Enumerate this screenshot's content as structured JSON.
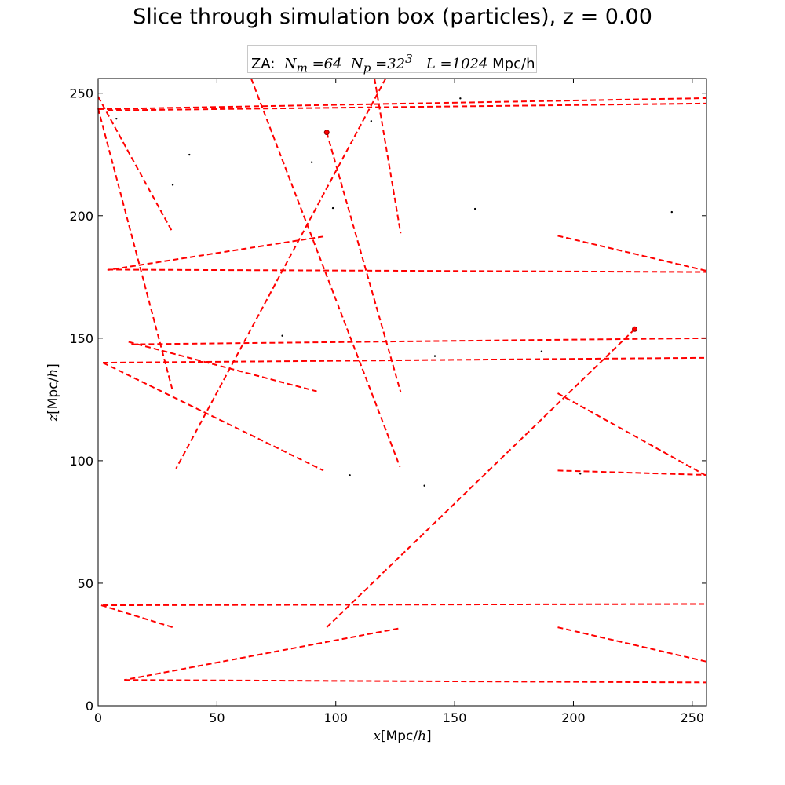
{
  "chart_data": {
    "type": "scatter",
    "title": "Slice through simulation box (particles), z = 0.00",
    "legend": {
      "label_prefix": "ZA:",
      "nm_label": "N",
      "nm_sub": "m",
      "nm_value": "=64",
      "np_label": "N",
      "np_sub": "p",
      "np_value": "=32",
      "np_sup": "3",
      "l_label": "L",
      "l_value": "=1024",
      "l_unit": "Mpc/h",
      "placement": "top-center"
    },
    "xlabel_math": "x",
    "xlabel_unit": "[Mpc/",
    "xlabel_math2": "h",
    "xlabel_close": "]",
    "ylabel_math": "z",
    "ylabel_unit": "[Mpc/",
    "ylabel_math2": "h",
    "ylabel_close": "]",
    "xlim": [
      0,
      256
    ],
    "ylim": [
      0,
      256
    ],
    "xticks": [
      0,
      50,
      100,
      150,
      200,
      250
    ],
    "yticks": [
      0,
      50,
      100,
      150,
      200,
      250
    ],
    "points": [
      [
        7.7,
        239.6
      ],
      [
        38.4,
        224.9
      ],
      [
        31.4,
        212.6
      ],
      [
        89.9,
        221.8
      ],
      [
        98.8,
        203.1
      ],
      [
        114.9,
        238.6
      ],
      [
        152.4,
        247.9
      ],
      [
        158.6,
        202.8
      ],
      [
        241.4,
        201.5
      ],
      [
        77.5,
        151.0
      ],
      [
        141.7,
        142.7
      ],
      [
        186.6,
        144.6
      ],
      [
        105.9,
        94.1
      ],
      [
        137.3,
        89.8
      ],
      [
        202.9,
        94.7
      ]
    ],
    "highlight_points": [
      [
        96.2,
        234.0
      ],
      [
        225.8,
        153.7
      ]
    ],
    "segments": [
      [
        0,
        243.5,
        256,
        248.0
      ],
      [
        4,
        243.0,
        256,
        245.8
      ],
      [
        4,
        178.0,
        256,
        177.0
      ],
      [
        14,
        147.5,
        256,
        150.0
      ],
      [
        2,
        140.0,
        256,
        142.0
      ],
      [
        2,
        41.0,
        256,
        41.5
      ],
      [
        11,
        10.5,
        256,
        9.5
      ],
      [
        94.8,
        191.5,
        3.9,
        177.8
      ],
      [
        0,
        248.6,
        31.4,
        193.1
      ],
      [
        0,
        243.8,
        31.4,
        128.4
      ],
      [
        12.8,
        148.5,
        92.0,
        128.3
      ],
      [
        2.0,
        140.0,
        94.8,
        96.0
      ],
      [
        1.3,
        41.0,
        31.4,
        32.0
      ],
      [
        126.3,
        31.5,
        11.0,
        10.5
      ],
      [
        64.4,
        256.0,
        127.0,
        97.5
      ],
      [
        116.3,
        256.0,
        127.3,
        192.8
      ],
      [
        96.2,
        234.0,
        127.3,
        128.0
      ],
      [
        121.0,
        256.0,
        32.8,
        96.8
      ],
      [
        225.8,
        153.7,
        96.2,
        32.0
      ],
      [
        193.4,
        191.8,
        256,
        177.5
      ],
      [
        193.4,
        127.5,
        256,
        93.8
      ],
      [
        193.4,
        96.0,
        256,
        94.2
      ],
      [
        193.4,
        32.0,
        256,
        18.0
      ]
    ],
    "colors": {
      "segment": "#ff0000",
      "point": "#000000",
      "highlight": "#8b0000",
      "axes": "#000000"
    }
  }
}
